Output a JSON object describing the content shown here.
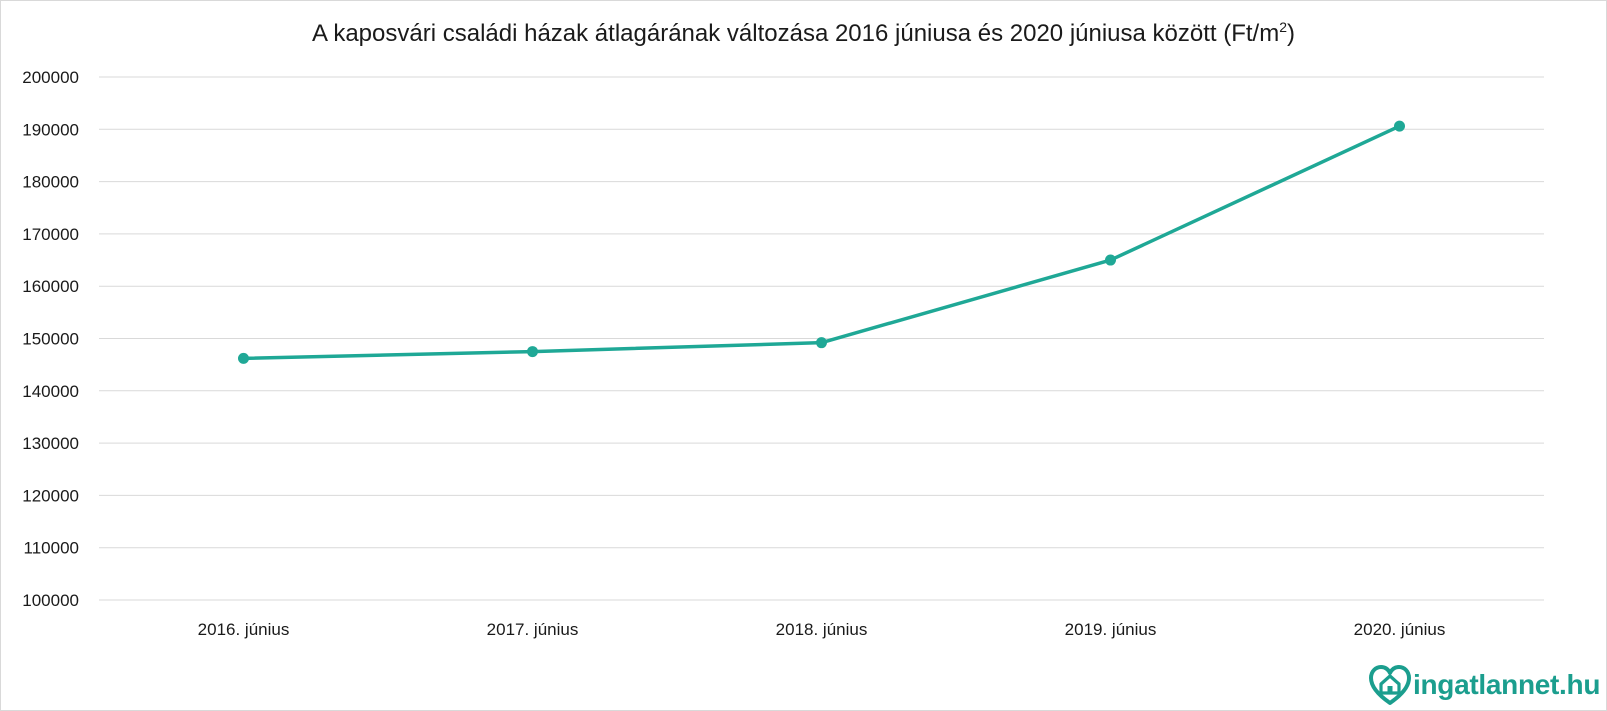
{
  "chart_data": {
    "type": "line",
    "title": "A kaposvári családi házak átlagárának változása 2016 júniusa és 2020 júniusa között (Ft/m",
    "title_superscript": "2",
    "title_suffix": ")",
    "categories": [
      "2016. június",
      "2017. június",
      "2018. június",
      "2019. június",
      "2020. június"
    ],
    "series": [
      {
        "values": [
          146200,
          147500,
          149200,
          165000,
          190600
        ],
        "color": "#1fa896"
      }
    ],
    "ylim": [
      100000,
      200000
    ],
    "yticks": [
      "100000",
      "110000",
      "120000",
      "130000",
      "140000",
      "150000",
      "160000",
      "170000",
      "180000",
      "190000",
      "200000"
    ],
    "grid": true,
    "legend": "none",
    "xlabel": "",
    "ylabel": ""
  },
  "logo": {
    "name": "ingatlannet",
    "tld": ".hu",
    "icon": "house-heart-icon",
    "color": "#1b9e8e"
  }
}
